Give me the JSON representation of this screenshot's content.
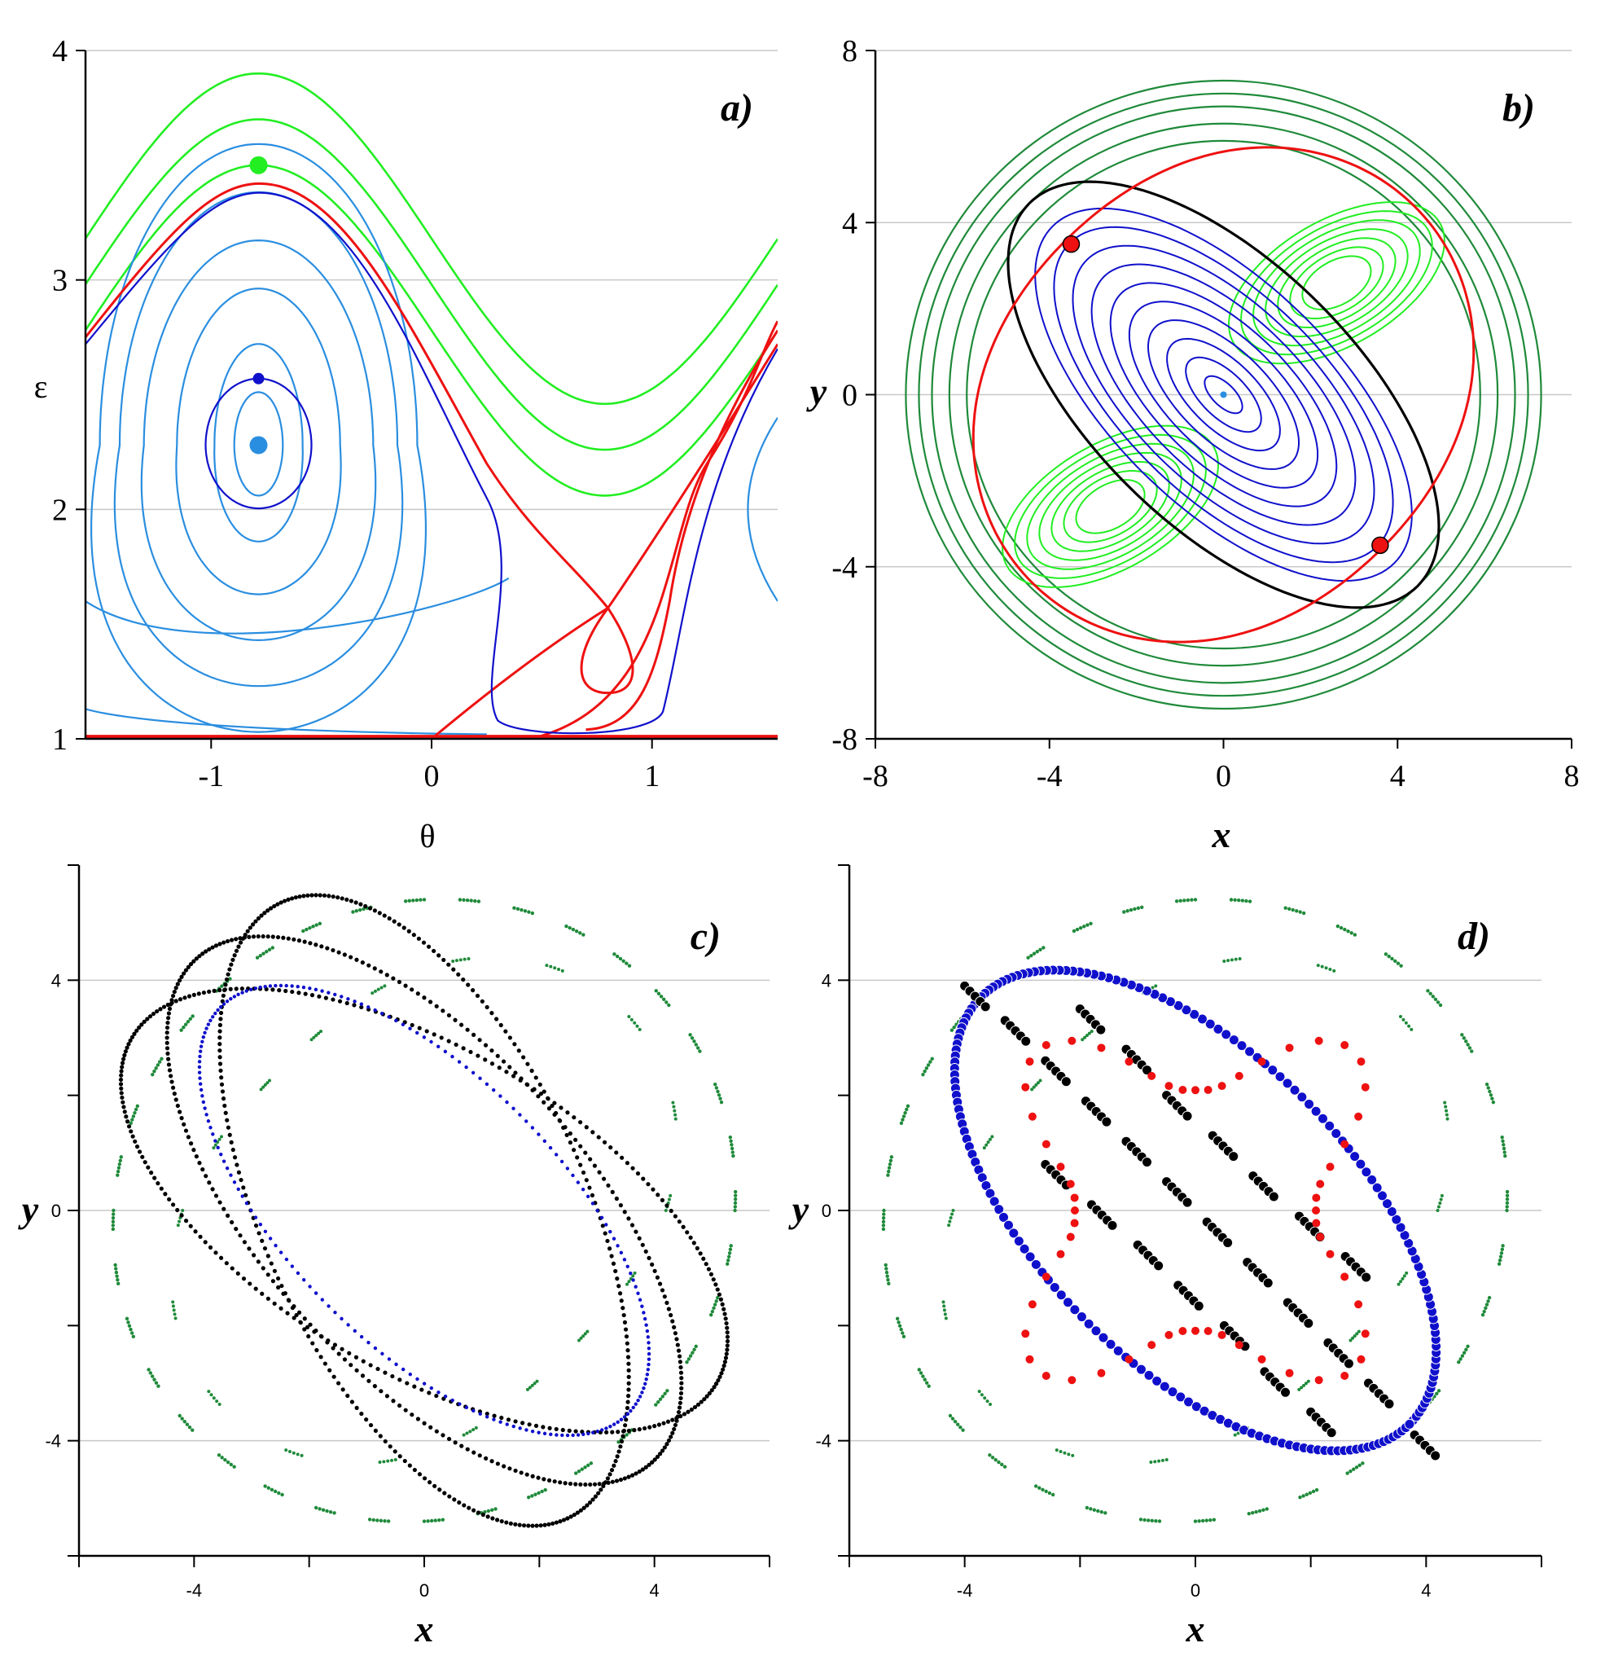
{
  "colors": {
    "red": "#ee1111",
    "blue": "#1010cc",
    "light_blue": "#2a8ee0",
    "green": "#22ee22",
    "dark_green": "#1f8a3a",
    "black": "#000000",
    "grid": "#c8c8c8"
  },
  "chart_data": [
    {
      "panel": "a",
      "type": "line",
      "label": "a)",
      "xlabel": "θ",
      "ylabel": "ε",
      "xlim": [
        -1.57,
        1.57
      ],
      "ylim": [
        1,
        4
      ],
      "xticks": [
        "-1",
        "0",
        "1"
      ],
      "yticks": [
        "1",
        "2",
        "3",
        "4"
      ],
      "grid": "horizontal",
      "separatrix_epsilon_at_max": 3.4,
      "green_levels": [
        3.5,
        3.7,
        3.9
      ],
      "light_blue_levels": [
        2.45,
        2.65,
        2.85,
        3.05,
        3.2,
        3.32
      ],
      "blue_level": 3.37,
      "points": [
        {
          "theta": -0.785,
          "epsilon": 3.5,
          "color": "green"
        },
        {
          "theta": -0.785,
          "epsilon": 2.57,
          "color": "blue"
        },
        {
          "theta": -0.785,
          "epsilon": 2.28,
          "color": "light_blue"
        }
      ]
    },
    {
      "panel": "b",
      "type": "line",
      "label": "b)",
      "xlabel": "x",
      "ylabel": "y",
      "xlim": [
        -8,
        8
      ],
      "ylim": [
        -8,
        8
      ],
      "xticks": [
        "-8",
        "-4",
        "0",
        "4",
        "8"
      ],
      "yticks": [
        "-8",
        "-4",
        "0",
        "4",
        "8"
      ],
      "grid": "horizontal",
      "saddle_points": [
        [
          -3.5,
          3.5
        ],
        [
          3.6,
          -3.5
        ]
      ],
      "centers": [
        [
          0,
          0
        ],
        [
          2.6,
          2.6
        ],
        [
          -2.6,
          -2.6
        ]
      ],
      "outer_circle_radii": [
        5.9,
        6.3,
        6.7,
        7.0,
        7.3
      ]
    },
    {
      "panel": "c",
      "type": "scatter",
      "label": "c)",
      "xlabel": "x",
      "ylabel": "y",
      "xlim": [
        -6,
        6
      ],
      "ylim": [
        -6,
        6
      ],
      "xticks": [
        "-4",
        "0",
        "4"
      ],
      "yticks": [
        "-4",
        "0",
        "4"
      ],
      "grid": "horizontal",
      "series": [
        {
          "color": "dark_green",
          "kind": "outer ring arcs",
          "radius": 5.4
        },
        {
          "color": "black",
          "kind": "rotating ellipses"
        },
        {
          "color": "blue",
          "kind": "inner ellipse"
        }
      ]
    },
    {
      "panel": "d",
      "type": "scatter",
      "label": "d)",
      "xlabel": "x",
      "ylabel": "y",
      "xlim": [
        -6,
        6
      ],
      "ylim": [
        -6,
        6
      ],
      "xticks": [
        "-4",
        "0",
        "4"
      ],
      "yticks": [
        "-4",
        "0",
        "4"
      ],
      "grid": "horizontal",
      "series": [
        {
          "color": "dark_green",
          "kind": "outer ring arcs",
          "radius": 5.4
        },
        {
          "color": "black",
          "kind": "segments"
        },
        {
          "color": "blue",
          "kind": "ellipse"
        },
        {
          "color": "red",
          "kind": "cross-shaped orbit"
        }
      ]
    }
  ]
}
